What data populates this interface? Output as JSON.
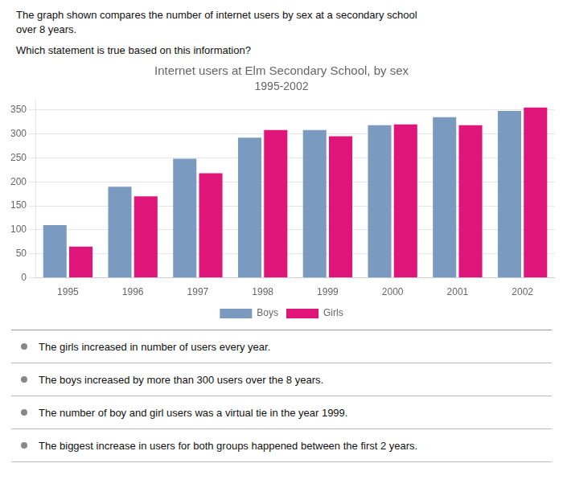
{
  "chart_data": {
    "type": "bar",
    "title": "Internet users at Elm Secondary School, by sex",
    "subtitle": "1995-2002",
    "categories": [
      "1995",
      "1996",
      "1997",
      "1998",
      "1999",
      "2000",
      "2001",
      "2002"
    ],
    "series": [
      {
        "name": "Boys",
        "color": "#7a9bbf",
        "values": [
          110,
          190,
          248,
          292,
          308,
          318,
          335,
          348
        ]
      },
      {
        "name": "Girls",
        "color": "#e0157a",
        "values": [
          65,
          170,
          218,
          308,
          295,
          320,
          318,
          355
        ]
      }
    ],
    "ylim": [
      0,
      370
    ],
    "yticks": [
      0,
      50,
      100,
      150,
      200,
      250,
      300,
      350
    ],
    "grid": true,
    "legend": "bottom",
    "annotations": {
      "text": [
        "The graph shown compares the number of internet users by sex at a secondary school",
        "over 8 years.",
        "Which statement is true based on this information?"
      ],
      "options": [
        "The girls increased in number of users every year.",
        "The boys increased by more than 300 users over the 8 years.",
        "The number of boy and girl users was a virtual tie in the year 1999.",
        "The biggest increase in users for both groups happened between the first 2 years."
      ]
    }
  }
}
